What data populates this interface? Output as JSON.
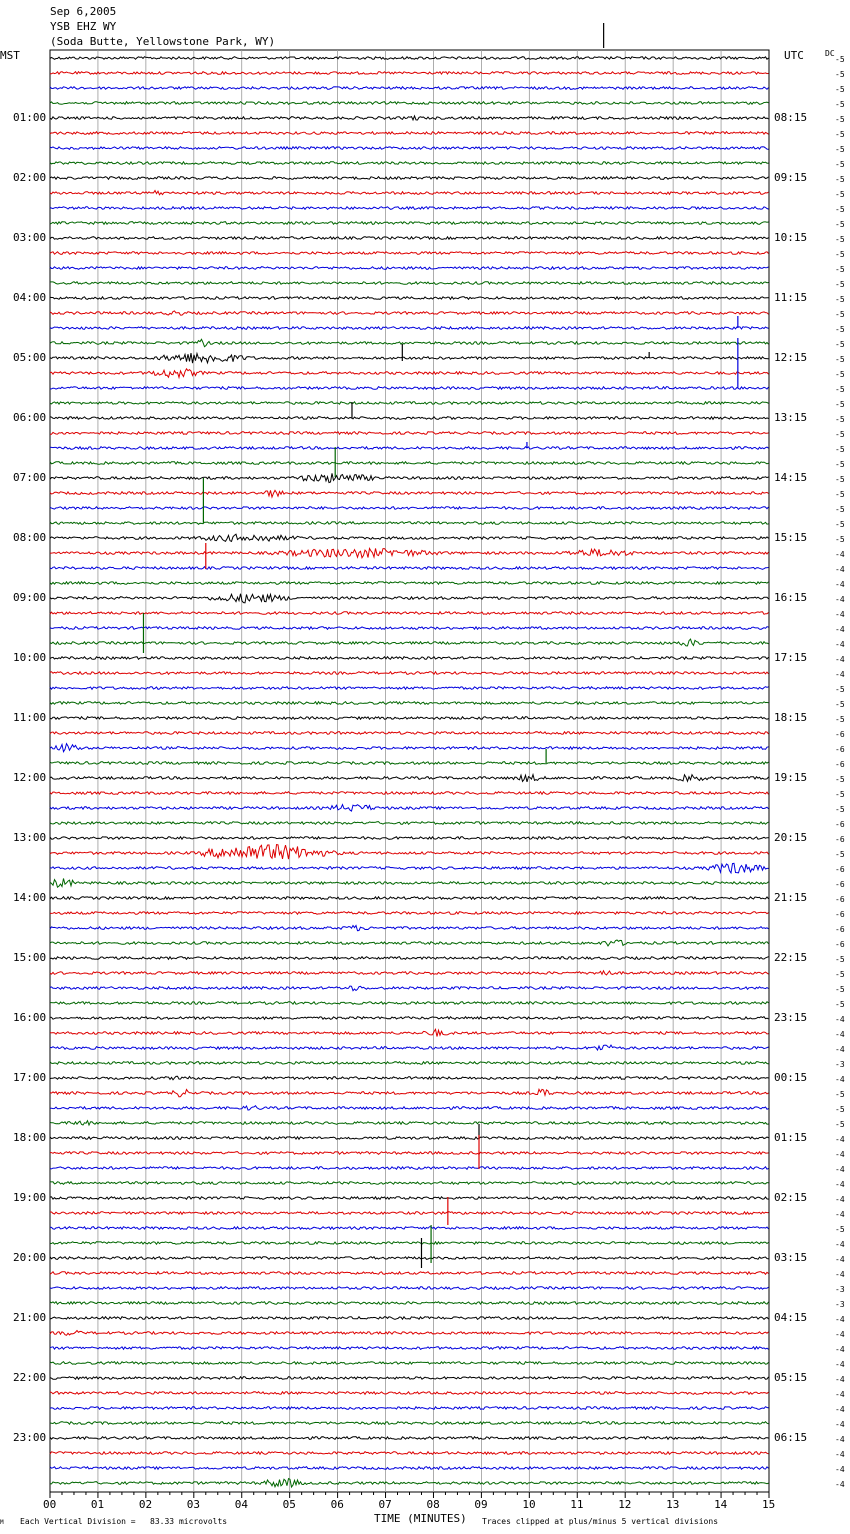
{
  "header": {
    "date": "Sep 6,2005",
    "station": "YSB EHZ WY",
    "location": "(Soda Butte, Yellowstone Park, WY)"
  },
  "left_label": "MST",
  "right_label": "UTC",
  "dc_label": "DC",
  "footer": {
    "scale_note": "Each Vertical Division =   83.33 microvolts",
    "xlabel": "TIME (MINUTES)",
    "clip_note": "Traces clipped at plus/minus 5 vertical divisions",
    "corner_mark": "M"
  },
  "colors": {
    "trace_cycle": [
      "#000000",
      "#dd0000",
      "#0000dd",
      "#006600"
    ],
    "grid": "#999999"
  },
  "chart_data": {
    "type": "line",
    "xlabel": "TIME (MINUTES)",
    "xlim": [
      0,
      15
    ],
    "x_ticks": [
      "00",
      "01",
      "02",
      "03",
      "04",
      "05",
      "06",
      "07",
      "08",
      "09",
      "10",
      "11",
      "12",
      "13",
      "14",
      "15"
    ],
    "left_hour_labels": [
      "01:00",
      "02:00",
      "03:00",
      "04:00",
      "05:00",
      "06:00",
      "07:00",
      "08:00",
      "09:00",
      "10:00",
      "11:00",
      "12:00",
      "13:00",
      "14:00",
      "15:00",
      "16:00",
      "17:00",
      "18:00",
      "19:00",
      "20:00",
      "21:00",
      "22:00",
      "23:00"
    ],
    "right_hour_labels": [
      "08:15",
      "09:15",
      "10:15",
      "11:15",
      "12:15",
      "13:15",
      "14:15",
      "15:15",
      "16:15",
      "17:15",
      "18:15",
      "19:15",
      "20:15",
      "21:15",
      "22:15",
      "23:15",
      "00:15",
      "01:15",
      "02:15",
      "03:15",
      "04:15",
      "05:15",
      "06:15"
    ],
    "trace_count": 96,
    "dc_offsets": [
      "-5",
      "-5",
      "-5",
      "-5",
      "-5",
      "-5",
      "-5",
      "-5",
      "-5",
      "-5",
      "-5",
      "-5",
      "-5",
      "-5",
      "-5",
      "-5",
      "-5",
      "-5",
      "-5",
      "-5",
      "-5",
      "-5",
      "-5",
      "-5",
      "-5",
      "-5",
      "-5",
      "-5",
      "-5",
      "-5",
      "-5",
      "-5",
      "-5",
      "-4",
      "-4",
      "-4",
      "-4",
      "-4",
      "-4",
      "-4",
      "-4",
      "-4",
      "-5",
      "-5",
      "-5",
      "-6",
      "-6",
      "-6",
      "-5",
      "-5",
      "-5",
      "-6",
      "-6",
      "-5",
      "-6",
      "-6",
      "-6",
      "-6",
      "-6",
      "-6",
      "-5",
      "-5",
      "-5",
      "-5",
      "-4",
      "-4",
      "-4",
      "-3",
      "-4",
      "-5",
      "-5",
      "-5",
      "-4",
      "-4",
      "-4",
      "-4",
      "-4",
      "-4",
      "-5",
      "-4",
      "-4",
      "-4",
      "-3",
      "-3",
      "-4",
      "-4",
      "-4",
      "-4",
      "-4",
      "-4",
      "-4",
      "-4",
      "-4",
      "-4",
      "-4",
      "-4"
    ],
    "events": [
      {
        "trace": 4,
        "minute": 7.5,
        "amp": 3,
        "dur": 0.3
      },
      {
        "trace": 9,
        "minute": 2.1,
        "amp": 3,
        "dur": 0.4
      },
      {
        "trace": 17,
        "minute": 2.5,
        "amp": 3,
        "dur": 0.4
      },
      {
        "trace": 19,
        "minute": 3.1,
        "amp": 4,
        "dur": 0.3
      },
      {
        "trace": 20,
        "minute": 2.7,
        "amp": 6,
        "dur": 1.6
      },
      {
        "trace": 21,
        "minute": 2.3,
        "amp": 5,
        "dur": 1.0
      },
      {
        "trace": 28,
        "minute": 5.5,
        "amp": 5,
        "dur": 1.5
      },
      {
        "trace": 29,
        "minute": 4.5,
        "amp": 4,
        "dur": 0.5
      },
      {
        "trace": 32,
        "minute": 3.5,
        "amp": 4,
        "dur": 2.0
      },
      {
        "trace": 33,
        "minute": 5.5,
        "amp": 5,
        "dur": 3.0
      },
      {
        "trace": 33,
        "minute": 11.0,
        "amp": 4,
        "dur": 1.5
      },
      {
        "trace": 36,
        "minute": 3.7,
        "amp": 5,
        "dur": 1.5
      },
      {
        "trace": 39,
        "minute": 13.2,
        "amp": 4,
        "dur": 0.5
      },
      {
        "trace": 46,
        "minute": 0.2,
        "amp": 5,
        "dur": 0.5
      },
      {
        "trace": 48,
        "minute": 9.8,
        "amp": 4,
        "dur": 0.6
      },
      {
        "trace": 48,
        "minute": 13.2,
        "amp": 4,
        "dur": 0.6
      },
      {
        "trace": 50,
        "minute": 6.0,
        "amp": 4,
        "dur": 1.0
      },
      {
        "trace": 53,
        "minute": 3.8,
        "amp": 9,
        "dur": 2.2
      },
      {
        "trace": 54,
        "minute": 14.0,
        "amp": 6,
        "dur": 1.0
      },
      {
        "trace": 55,
        "minute": 0.1,
        "amp": 5,
        "dur": 0.5
      },
      {
        "trace": 58,
        "minute": 6.2,
        "amp": 3,
        "dur": 0.6
      },
      {
        "trace": 59,
        "minute": 11.6,
        "amp": 4,
        "dur": 0.5
      },
      {
        "trace": 61,
        "minute": 11.4,
        "amp": 4,
        "dur": 0.4
      },
      {
        "trace": 62,
        "minute": 6.2,
        "amp": 3,
        "dur": 0.5
      },
      {
        "trace": 65,
        "minute": 7.9,
        "amp": 4,
        "dur": 0.5
      },
      {
        "trace": 66,
        "minute": 11.4,
        "amp": 4,
        "dur": 0.5
      },
      {
        "trace": 68,
        "minute": 2.6,
        "amp": 3,
        "dur": 0.5
      },
      {
        "trace": 69,
        "minute": 2.6,
        "amp": 4,
        "dur": 0.5
      },
      {
        "trace": 69,
        "minute": 10.2,
        "amp": 5,
        "dur": 0.3
      },
      {
        "trace": 70,
        "minute": 4.1,
        "amp": 3,
        "dur": 0.4
      },
      {
        "trace": 71,
        "minute": 0.5,
        "amp": 3,
        "dur": 0.5
      },
      {
        "trace": 85,
        "minute": 0.3,
        "amp": 3,
        "dur": 0.5
      },
      {
        "trace": 95,
        "minute": 4.6,
        "amp": 5,
        "dur": 0.8
      }
    ],
    "spikes": [
      {
        "trace": -1,
        "minute": 11.55,
        "up": 25,
        "down": 0
      },
      {
        "trace": 18,
        "minute": 14.35,
        "up": 12,
        "down": 0
      },
      {
        "trace": 19,
        "minute": 14.35,
        "up": 0,
        "down": 0
      },
      {
        "trace": 20,
        "minute": 7.35,
        "up": 14,
        "down": 3
      },
      {
        "trace": 20,
        "minute": 12.5,
        "up": 6,
        "down": 0
      },
      {
        "trace": 22,
        "minute": 14.35,
        "up": 50,
        "down": 0
      },
      {
        "trace": 24,
        "minute": 6.3,
        "up": 16,
        "down": 0
      },
      {
        "trace": 26,
        "minute": 9.95,
        "up": 6,
        "down": 0
      },
      {
        "trace": 27,
        "minute": 5.95,
        "up": 16,
        "down": 14
      },
      {
        "trace": 31,
        "minute": 3.2,
        "up": 45,
        "down": 0
      },
      {
        "trace": 33,
        "minute": 3.25,
        "up": 10,
        "down": 16
      },
      {
        "trace": 39,
        "minute": 1.95,
        "up": 30,
        "down": 10
      },
      {
        "trace": 47,
        "minute": 10.35,
        "up": 14,
        "down": 0
      },
      {
        "trace": 72,
        "minute": 8.95,
        "up": 14,
        "down": 0
      },
      {
        "trace": 73,
        "minute": 8.95,
        "up": 18,
        "down": 16
      },
      {
        "trace": 77,
        "minute": 8.3,
        "up": 16,
        "down": 12
      },
      {
        "trace": 80,
        "minute": 7.75,
        "up": 20,
        "down": 10
      },
      {
        "trace": 79,
        "minute": 7.95,
        "up": 18,
        "down": 20
      }
    ]
  }
}
